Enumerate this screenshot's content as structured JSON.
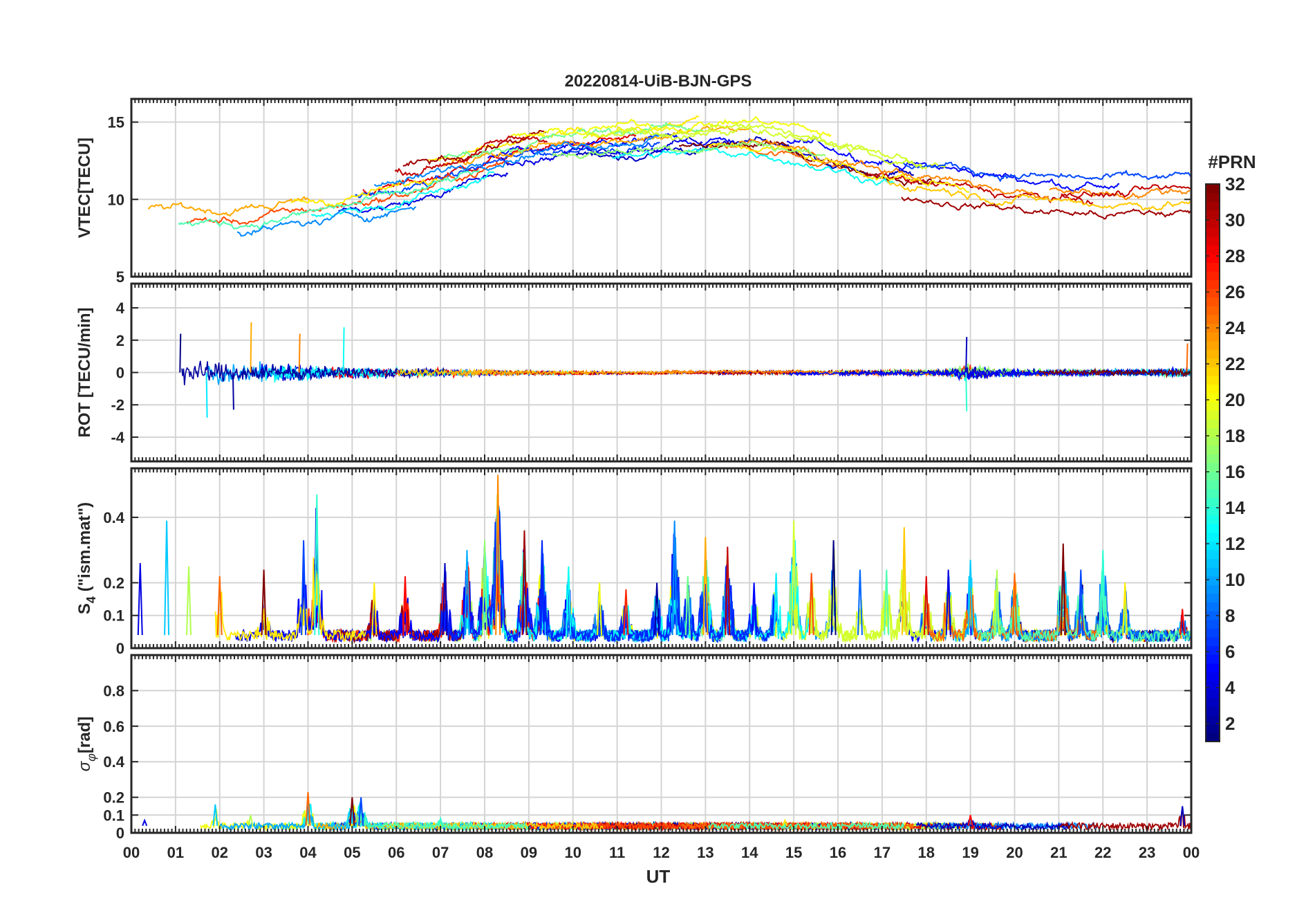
{
  "chart_data": {
    "type": "line",
    "title": "20220814-UiB-BJN-GPS",
    "xlabel": "UT",
    "x_ticks": [
      "00",
      "01",
      "02",
      "03",
      "04",
      "05",
      "06",
      "07",
      "08",
      "09",
      "10",
      "11",
      "12",
      "13",
      "14",
      "15",
      "16",
      "17",
      "18",
      "19",
      "20",
      "21",
      "22",
      "23",
      "00"
    ],
    "xlim": [
      0,
      24
    ],
    "colorbar": {
      "title": "#PRN",
      "colormap": "jet",
      "range": [
        1,
        32
      ],
      "ticks": [
        "2",
        "4",
        "6",
        "8",
        "10",
        "12",
        "14",
        "16",
        "18",
        "20",
        "22",
        "24",
        "26",
        "28",
        "30",
        "32"
      ]
    },
    "panels": [
      {
        "id": "vtec",
        "ylabel": "VTEC[TECU]",
        "ylim": [
          5,
          16.5
        ],
        "yticks": [
          5,
          10,
          15
        ],
        "ytick_labels": [
          "5",
          "10",
          "15"
        ],
        "description_series": "VTEC per satellite, rising from ~6-10 TECU at 00-06 UT to ~13-16 TECU around 10-15 UT, then decreasing to ~9-12 TECU by 24 UT",
        "profile": [
          [
            0,
            8.5
          ],
          [
            2,
            8.5
          ],
          [
            4,
            9.5
          ],
          [
            6,
            10.5
          ],
          [
            8,
            12.5
          ],
          [
            10,
            13.2
          ],
          [
            12,
            13.6
          ],
          [
            14,
            13.8
          ],
          [
            16,
            12.2
          ],
          [
            18,
            11.2
          ],
          [
            20,
            10.5
          ],
          [
            22,
            10.2
          ],
          [
            24,
            10.5
          ]
        ],
        "spread": 2.2
      },
      {
        "id": "rot",
        "ylabel": "ROT [TECU/min]",
        "ylim": [
          -5.5,
          5.5
        ],
        "yticks": [
          -4,
          -2,
          0,
          2,
          4
        ],
        "ytick_labels": [
          "-4",
          "-2",
          "0",
          "2",
          "4"
        ],
        "noise_profile": [
          [
            0,
            0.55
          ],
          [
            1,
            0.9
          ],
          [
            2,
            0.8
          ],
          [
            3,
            0.7
          ],
          [
            4,
            0.55
          ],
          [
            5,
            0.4
          ],
          [
            6,
            0.35
          ],
          [
            7,
            0.3
          ],
          [
            8,
            0.25
          ],
          [
            9,
            0.15
          ],
          [
            12,
            0.12
          ],
          [
            15,
            0.15
          ],
          [
            17,
            0.18
          ],
          [
            18.5,
            0.25
          ],
          [
            19,
            0.6
          ],
          [
            19.5,
            0.3
          ],
          [
            21,
            0.2
          ],
          [
            23,
            0.25
          ],
          [
            24,
            0.4
          ]
        ],
        "spikes": [
          [
            1.1,
            2.4
          ],
          [
            1.7,
            -2.8
          ],
          [
            2.7,
            3.1
          ],
          [
            2.3,
            -2.3
          ],
          [
            4.8,
            2.8
          ],
          [
            3.8,
            2.4
          ],
          [
            18.9,
            2.2
          ],
          [
            18.9,
            -2.4
          ],
          [
            23.9,
            1.8
          ]
        ]
      },
      {
        "id": "s4",
        "ylabel": "S4 (\"ism.mat\")",
        "ylabel_main": "S",
        "ylabel_sub": "4",
        "ylabel_rest": " (\"ism.mat\")",
        "ylim": [
          0,
          0.55
        ],
        "yticks": [
          0,
          0.1,
          0.2,
          0.4
        ],
        "ytick_labels": [
          "0",
          "0.1",
          "0.2",
          "0.4"
        ],
        "baseline": 0.04,
        "bursts": [
          [
            0.2,
            0.26
          ],
          [
            0.8,
            0.39
          ],
          [
            1.3,
            0.25
          ],
          [
            2.0,
            0.22
          ],
          [
            3.0,
            0.24
          ],
          [
            3.9,
            0.33
          ],
          [
            4.2,
            0.47
          ],
          [
            5.5,
            0.2
          ],
          [
            6.2,
            0.22
          ],
          [
            7.1,
            0.26
          ],
          [
            7.6,
            0.3
          ],
          [
            8.0,
            0.33
          ],
          [
            8.3,
            0.53
          ],
          [
            8.9,
            0.36
          ],
          [
            9.3,
            0.33
          ],
          [
            9.9,
            0.25
          ],
          [
            10.6,
            0.2
          ],
          [
            11.2,
            0.18
          ],
          [
            11.9,
            0.2
          ],
          [
            12.3,
            0.39
          ],
          [
            12.6,
            0.22
          ],
          [
            13.0,
            0.34
          ],
          [
            13.5,
            0.31
          ],
          [
            14.1,
            0.2
          ],
          [
            14.6,
            0.23
          ],
          [
            15.0,
            0.39
          ],
          [
            15.4,
            0.23
          ],
          [
            15.9,
            0.33
          ],
          [
            16.5,
            0.24
          ],
          [
            17.1,
            0.24
          ],
          [
            17.5,
            0.37
          ],
          [
            18.0,
            0.22
          ],
          [
            18.5,
            0.24
          ],
          [
            19.0,
            0.27
          ],
          [
            19.6,
            0.24
          ],
          [
            20.0,
            0.23
          ],
          [
            21.1,
            0.32
          ],
          [
            21.5,
            0.24
          ],
          [
            22.0,
            0.3
          ],
          [
            22.5,
            0.2
          ],
          [
            23.8,
            0.12
          ]
        ]
      },
      {
        "id": "sigma_phi",
        "ylabel": "σφ[rad]",
        "ylabel_main": "σ",
        "ylabel_sub": "φ",
        "ylabel_rest": "[rad]",
        "ylim": [
          0,
          1.0
        ],
        "yticks": [
          0,
          0.1,
          0.2,
          0.4,
          0.6,
          0.8
        ],
        "ytick_labels": [
          "0",
          "0.1",
          "0.2",
          "0.4",
          "0.6",
          "0.8"
        ],
        "baseline": 0.04,
        "bursts": [
          [
            0.3,
            0.07
          ],
          [
            1.9,
            0.16
          ],
          [
            2.7,
            0.1
          ],
          [
            4.0,
            0.23
          ],
          [
            5.0,
            0.2
          ],
          [
            5.2,
            0.2
          ],
          [
            7.0,
            0.08
          ],
          [
            14.8,
            0.07
          ],
          [
            19.0,
            0.1
          ],
          [
            23.8,
            0.15
          ]
        ]
      }
    ]
  },
  "colors": {
    "axis": "#262626",
    "grid": "#d9d9d9"
  }
}
